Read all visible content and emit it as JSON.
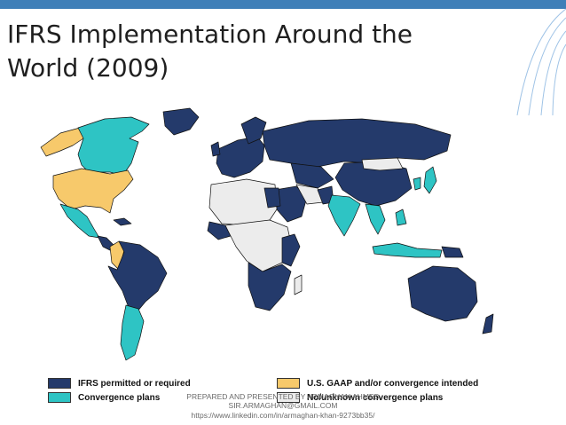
{
  "title": "IFRS Implementation Around the World (2009)",
  "colors": {
    "ifrs": "#243a6b",
    "convergence": "#2ec4c4",
    "usgaap": "#f7c96b",
    "unknown": "#ececec",
    "accent": "#3f7fb8"
  },
  "legend": [
    {
      "key": "ifrs",
      "label": "IFRS permitted or required",
      "color": "#243a6b"
    },
    {
      "key": "usgaap",
      "label": "U.S. GAAP and/or convergence intended",
      "color": "#f7c96b"
    },
    {
      "key": "convergence",
      "label": "Convergence plans",
      "color": "#2ec4c4"
    },
    {
      "key": "unknown",
      "label": "No/unknown convergence plans",
      "color": "#ececec"
    }
  ],
  "credit": {
    "line1": "PREPARED AND PRESENTED BY ARMAGHAN AHMED",
    "line2": "SIR.ARMAGHAN@GMAIL.COM",
    "line3": "https://www.linkedin.com/in/armaghan-khan-9273bb35/"
  }
}
